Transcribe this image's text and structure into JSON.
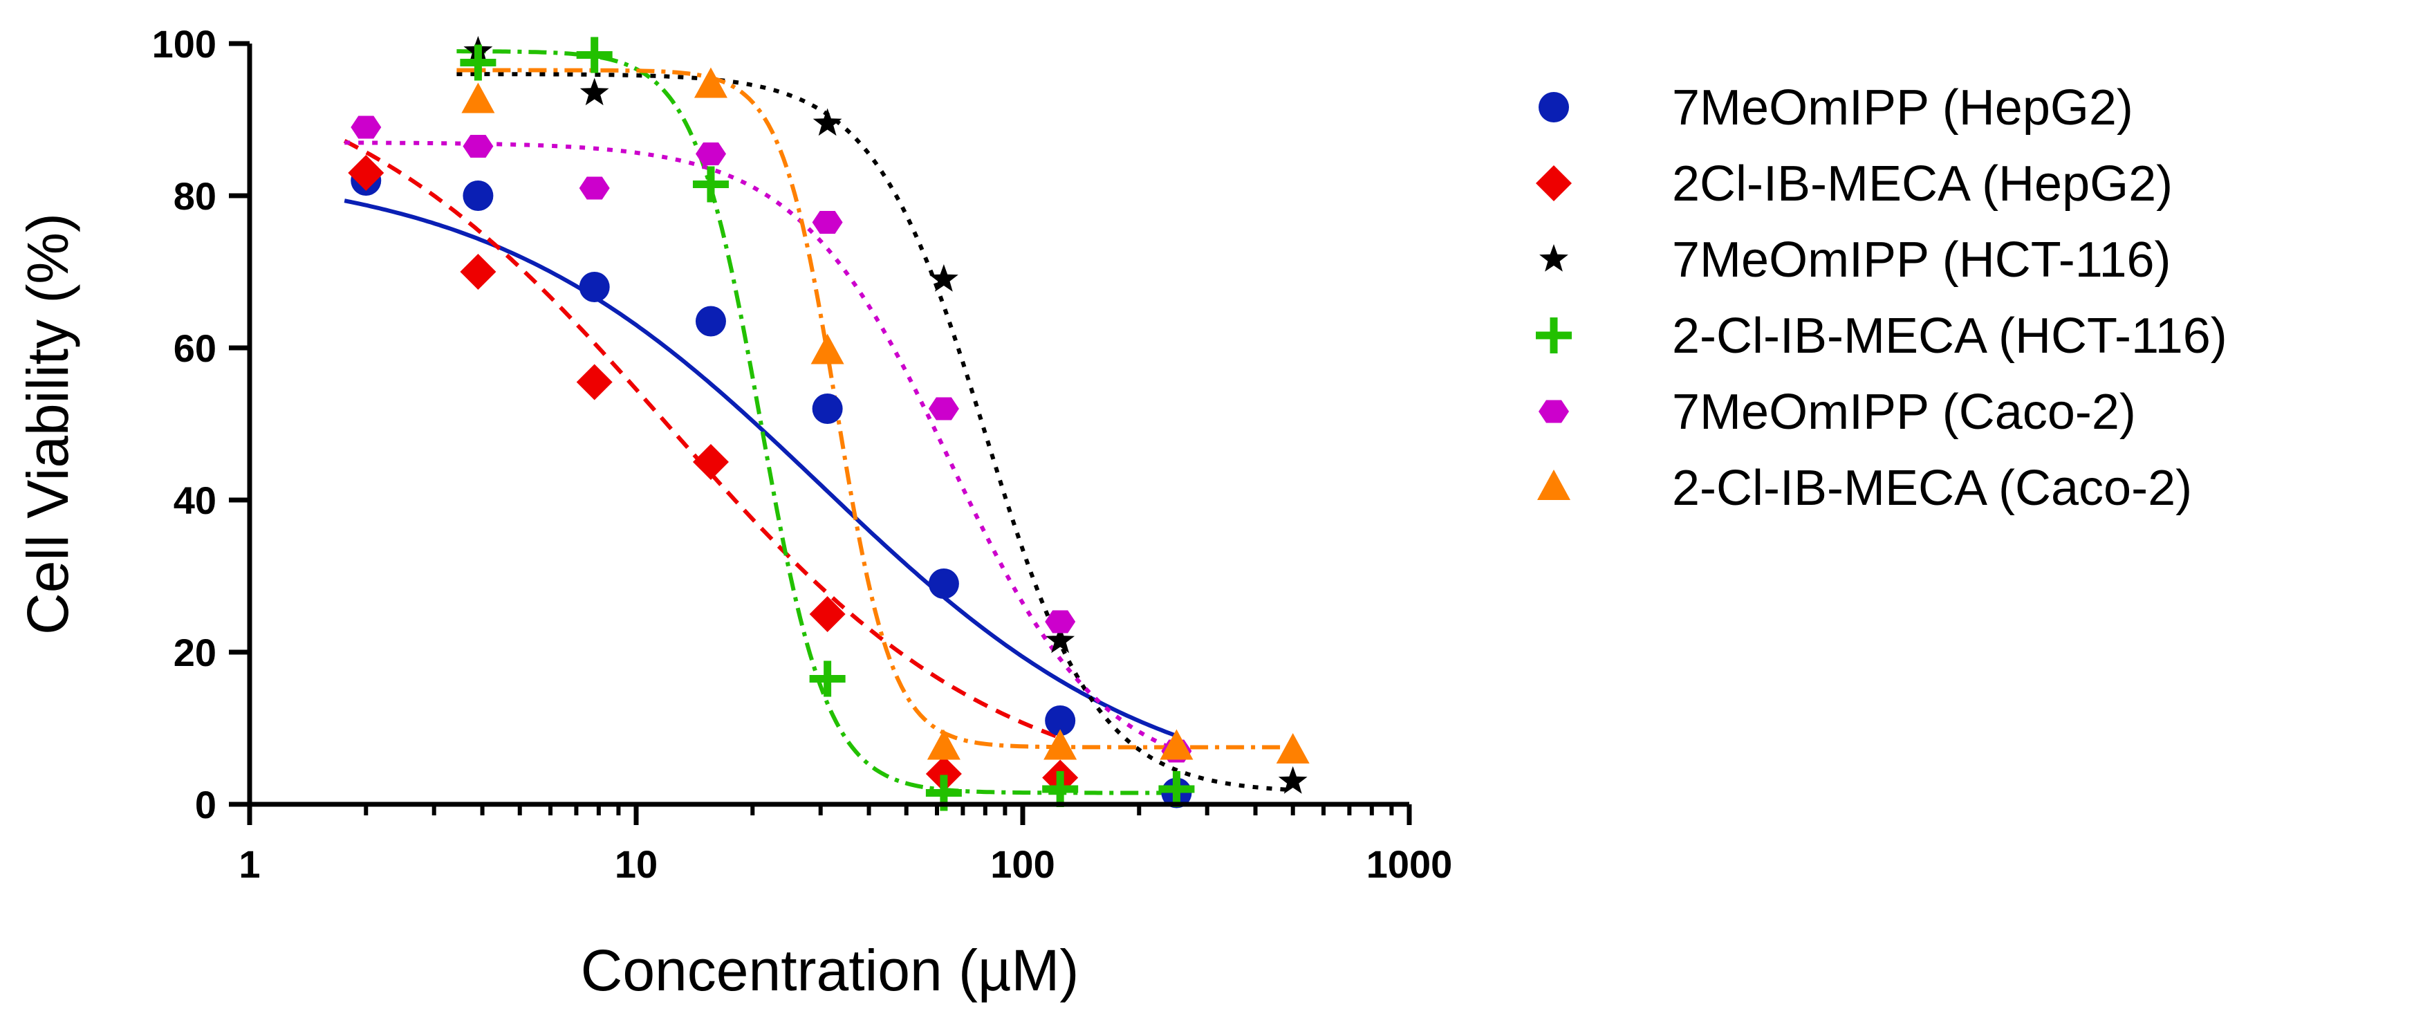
{
  "chart_data": {
    "type": "scatter",
    "title": "",
    "xlabel": "Concentration (µM)",
    "ylabel": "Cell Viability (%)",
    "xscale": "log",
    "xlim": [
      1,
      1000
    ],
    "ylim": [
      0,
      100
    ],
    "x_ticks": [
      1,
      10,
      100,
      1000
    ],
    "x_tick_labels": [
      "1",
      "10",
      "100",
      "1000"
    ],
    "y_ticks": [
      0,
      20,
      40,
      60,
      80,
      100
    ],
    "y_tick_labels": [
      "0",
      "20",
      "40",
      "60",
      "80",
      "100"
    ],
    "legend_position": "right",
    "series": [
      {
        "name": "7MeOmIPP (HepG2)",
        "color": "#0a1fb4",
        "marker": "circle",
        "line": "solid",
        "x": [
          2,
          3.9,
          7.8,
          15.6,
          31.25,
          62.5,
          125,
          250
        ],
        "y": [
          82,
          80,
          68,
          63.5,
          52,
          29,
          11,
          1.5
        ],
        "fit": {
          "top": 84,
          "bottom": 0,
          "ic50": 30,
          "hill": 1.0
        }
      },
      {
        "name": "2Cl-IB-MECA (HepG2)",
        "color": "#ee0000",
        "marker": "diamond",
        "line": "dashed",
        "x": [
          2,
          3.9,
          7.8,
          15.6,
          31.25,
          62.5,
          125
        ],
        "y": [
          83,
          70,
          55.5,
          45,
          25,
          4,
          3.5
        ],
        "fit": {
          "top": 100,
          "bottom": 0,
          "ic50": 12,
          "hill": 1.0
        }
      },
      {
        "name": "7MeOmIPP (HCT-116)",
        "color": "#000000",
        "marker": "star",
        "line": "dotted",
        "x": [
          3.9,
          7.8,
          31.25,
          62.5,
          125,
          500
        ],
        "y": [
          99,
          93.5,
          89.5,
          69,
          21.5,
          3
        ],
        "fit": {
          "top": 96,
          "bottom": 1.5,
          "ic50": 80,
          "hill": 3.0
        }
      },
      {
        "name": "2-Cl-IB-MECA (HCT-116)",
        "color": "#22c000",
        "marker": "plus",
        "line": "dashdot",
        "x": [
          3.9,
          7.8,
          15.6,
          31.25,
          62.5,
          125,
          250
        ],
        "y": [
          97.5,
          98.5,
          81.5,
          16.5,
          1.5,
          2,
          2
        ],
        "fit": {
          "top": 99,
          "bottom": 1.5,
          "ic50": 21,
          "hill": 5.0
        }
      },
      {
        "name": "7MeOmIPP (Caco-2)",
        "color": "#cc00cc",
        "marker": "hexagon",
        "line": "dotted",
        "x": [
          2,
          3.9,
          7.8,
          15.6,
          31.25,
          62.5,
          125,
          250
        ],
        "y": [
          89,
          86.5,
          81,
          85.5,
          76.5,
          52,
          24,
          7
        ],
        "fit": {
          "top": 87,
          "bottom": 3,
          "ic50": 65,
          "hill": 2.2
        }
      },
      {
        "name": "2-Cl-IB-MECA (Caco-2)",
        "color": "#ff8000",
        "marker": "triangle",
        "line": "dashdot",
        "x": [
          3.9,
          15.6,
          31.25,
          62.5,
          125,
          250,
          500
        ],
        "y": [
          92.5,
          94.5,
          59.5,
          7.5,
          7.5,
          7.5,
          7
        ],
        "fit": {
          "top": 96.5,
          "bottom": 7.5,
          "ic50": 33,
          "hill": 6.0
        }
      }
    ]
  }
}
